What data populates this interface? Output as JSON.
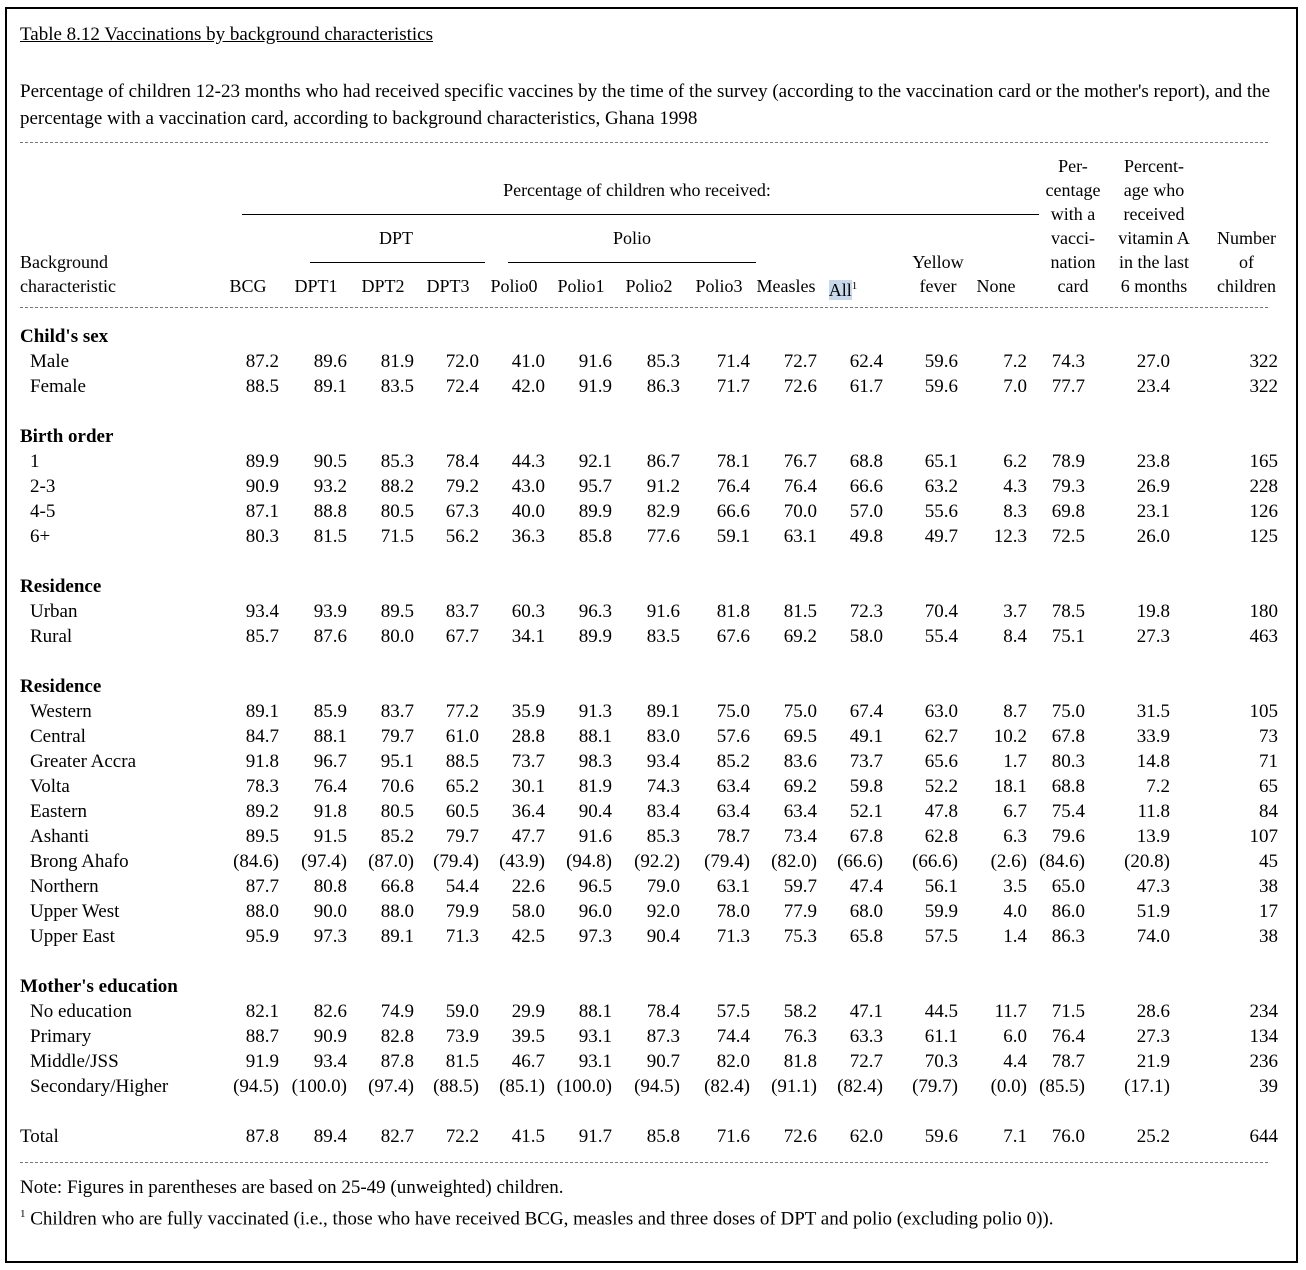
{
  "title": "Table 8.12  Vaccinations by background characteristics",
  "description": "Percentage of children 12-23 months who had received specific vaccines by the time of the survey (according to the vaccination card or the mother's report), and the percentage with a vaccination card, according to background characteristics, Ghana 1998",
  "header": {
    "background_line1": "Background",
    "background_line2": "characteristic",
    "group_received": "Percentage of children who received:",
    "group_dpt": "DPT",
    "group_polio": "Polio",
    "columns": [
      "BCG",
      "DPT1",
      "DPT2",
      "DPT3",
      "Polio0",
      "Polio1",
      "Polio2",
      "Polio3",
      "Measles",
      "All",
      "Yellow fever",
      "None"
    ],
    "all_sup": "1",
    "yellow_line1": "Yellow",
    "yellow_line2": "fever",
    "card": [
      "Per-",
      "centage",
      "with a",
      "vacci-",
      "nation",
      "card"
    ],
    "vitA": [
      "Percent-",
      "age who",
      "received",
      "vitamin A",
      "in the last",
      "6 months"
    ],
    "number": [
      "Number",
      "of",
      "children"
    ]
  },
  "sections": [
    {
      "label": "Child's sex",
      "rows": [
        {
          "label": "Male",
          "values": [
            "87.2",
            "89.6",
            "81.9",
            "72.0",
            "41.0",
            "91.6",
            "85.3",
            "71.4",
            "72.7",
            "62.4",
            "59.6",
            "7.2",
            "74.3",
            "27.0",
            "322"
          ]
        },
        {
          "label": "Female",
          "values": [
            "88.5",
            "89.1",
            "83.5",
            "72.4",
            "42.0",
            "91.9",
            "86.3",
            "71.7",
            "72.6",
            "61.7",
            "59.6",
            "7.0",
            "77.7",
            "23.4",
            "322"
          ]
        }
      ]
    },
    {
      "label": "Birth order",
      "rows": [
        {
          "label": "1",
          "values": [
            "89.9",
            "90.5",
            "85.3",
            "78.4",
            "44.3",
            "92.1",
            "86.7",
            "78.1",
            "76.7",
            "68.8",
            "65.1",
            "6.2",
            "78.9",
            "23.8",
            "165"
          ]
        },
        {
          "label": "2-3",
          "values": [
            "90.9",
            "93.2",
            "88.2",
            "79.2",
            "43.0",
            "95.7",
            "91.2",
            "76.4",
            "76.4",
            "66.6",
            "63.2",
            "4.3",
            "79.3",
            "26.9",
            "228"
          ]
        },
        {
          "label": "4-5",
          "values": [
            "87.1",
            "88.8",
            "80.5",
            "67.3",
            "40.0",
            "89.9",
            "82.9",
            "66.6",
            "70.0",
            "57.0",
            "55.6",
            "8.3",
            "69.8",
            "23.1",
            "126"
          ]
        },
        {
          "label": "6+",
          "values": [
            "80.3",
            "81.5",
            "71.5",
            "56.2",
            "36.3",
            "85.8",
            "77.6",
            "59.1",
            "63.1",
            "49.8",
            "49.7",
            "12.3",
            "72.5",
            "26.0",
            "125"
          ]
        }
      ]
    },
    {
      "label": "Residence",
      "rows": [
        {
          "label": "Urban",
          "values": [
            "93.4",
            "93.9",
            "89.5",
            "83.7",
            "60.3",
            "96.3",
            "91.6",
            "81.8",
            "81.5",
            "72.3",
            "70.4",
            "3.7",
            "78.5",
            "19.8",
            "180"
          ]
        },
        {
          "label": "Rural",
          "values": [
            "85.7",
            "87.6",
            "80.0",
            "67.7",
            "34.1",
            "89.9",
            "83.5",
            "67.6",
            "69.2",
            "58.0",
            "55.4",
            "8.4",
            "75.1",
            "27.3",
            "463"
          ]
        }
      ]
    },
    {
      "label": "Residence",
      "rows": [
        {
          "label": "Western",
          "values": [
            "89.1",
            "85.9",
            "83.7",
            "77.2",
            "35.9",
            "91.3",
            "89.1",
            "75.0",
            "75.0",
            "67.4",
            "63.0",
            "8.7",
            "75.0",
            "31.5",
            "105"
          ]
        },
        {
          "label": "Central",
          "values": [
            "84.7",
            "88.1",
            "79.7",
            "61.0",
            "28.8",
            "88.1",
            "83.0",
            "57.6",
            "69.5",
            "49.1",
            "62.7",
            "10.2",
            "67.8",
            "33.9",
            "73"
          ]
        },
        {
          "label": "Greater Accra",
          "values": [
            "91.8",
            "96.7",
            "95.1",
            "88.5",
            "73.7",
            "98.3",
            "93.4",
            "85.2",
            "83.6",
            "73.7",
            "65.6",
            "1.7",
            "80.3",
            "14.8",
            "71"
          ]
        },
        {
          "label": "Volta",
          "values": [
            "78.3",
            "76.4",
            "70.6",
            "65.2",
            "30.1",
            "81.9",
            "74.3",
            "63.4",
            "69.2",
            "59.8",
            "52.2",
            "18.1",
            "68.8",
            "7.2",
            "65"
          ]
        },
        {
          "label": "Eastern",
          "values": [
            "89.2",
            "91.8",
            "80.5",
            "60.5",
            "36.4",
            "90.4",
            "83.4",
            "63.4",
            "63.4",
            "52.1",
            "47.8",
            "6.7",
            "75.4",
            "11.8",
            "84"
          ]
        },
        {
          "label": "Ashanti",
          "values": [
            "89.5",
            "91.5",
            "85.2",
            "79.7",
            "47.7",
            "91.6",
            "85.3",
            "78.7",
            "73.4",
            "67.8",
            "62.8",
            "6.3",
            "79.6",
            "13.9",
            "107"
          ]
        },
        {
          "label": "Brong Ahafo",
          "values": [
            "(84.6)",
            "(97.4)",
            "(87.0)",
            "(79.4)",
            "(43.9)",
            "(94.8)",
            "(92.2)",
            "(79.4)",
            "(82.0)",
            "(66.6)",
            "(66.6)",
            "(2.6)",
            "(84.6)",
            "(20.8)",
            "45"
          ]
        },
        {
          "label": "Northern",
          "values": [
            "87.7",
            "80.8",
            "66.8",
            "54.4",
            "22.6",
            "96.5",
            "79.0",
            "63.1",
            "59.7",
            "47.4",
            "56.1",
            "3.5",
            "65.0",
            "47.3",
            "38"
          ]
        },
        {
          "label": "Upper West",
          "values": [
            "88.0",
            "90.0",
            "88.0",
            "79.9",
            "58.0",
            "96.0",
            "92.0",
            "78.0",
            "77.9",
            "68.0",
            "59.9",
            "4.0",
            "86.0",
            "51.9",
            "17"
          ]
        },
        {
          "label": "Upper East",
          "values": [
            "95.9",
            "97.3",
            "89.1",
            "71.3",
            "42.5",
            "97.3",
            "90.4",
            "71.3",
            "75.3",
            "65.8",
            "57.5",
            "1.4",
            "86.3",
            "74.0",
            "38"
          ]
        }
      ]
    },
    {
      "label": "Mother's education",
      "rows": [
        {
          "label": "No education",
          "values": [
            "82.1",
            "82.6",
            "74.9",
            "59.0",
            "29.9",
            "88.1",
            "78.4",
            "57.5",
            "58.2",
            "47.1",
            "44.5",
            "11.7",
            "71.5",
            "28.6",
            "234"
          ]
        },
        {
          "label": "Primary",
          "values": [
            "88.7",
            "90.9",
            "82.8",
            "73.9",
            "39.5",
            "93.1",
            "87.3",
            "74.4",
            "76.3",
            "63.3",
            "61.1",
            "6.0",
            "76.4",
            "27.3",
            "134"
          ]
        },
        {
          "label": "Middle/JSS",
          "values": [
            "91.9",
            "93.4",
            "87.8",
            "81.5",
            "46.7",
            "93.1",
            "90.7",
            "82.0",
            "81.8",
            "72.7",
            "70.3",
            "4.4",
            "78.7",
            "21.9",
            "236"
          ]
        },
        {
          "label": "Secondary/Higher",
          "values": [
            "(94.5)",
            "(100.0)",
            "(97.4)",
            "(88.5)",
            "(85.1)",
            "(100.0)",
            "(94.5)",
            "(82.4)",
            "(91.1)",
            "(82.4)",
            "(79.7)",
            "(0.0)",
            "(85.5)",
            "(17.1)",
            "39"
          ]
        }
      ]
    }
  ],
  "total": {
    "label": "Total",
    "values": [
      "87.8",
      "89.4",
      "82.7",
      "72.2",
      "41.5",
      "91.7",
      "85.8",
      "71.6",
      "72.6",
      "62.0",
      "59.6",
      "7.1",
      "76.0",
      "25.2",
      "644"
    ]
  },
  "notes": {
    "note": "Note:  Figures in parentheses are based on 25-49 (unweighted) children.",
    "footnote_mark": "1",
    "footnote": " Children who are fully vaccinated (i.e., those who have received BCG, measles and three doses of DPT and polio (excluding polio 0))."
  }
}
